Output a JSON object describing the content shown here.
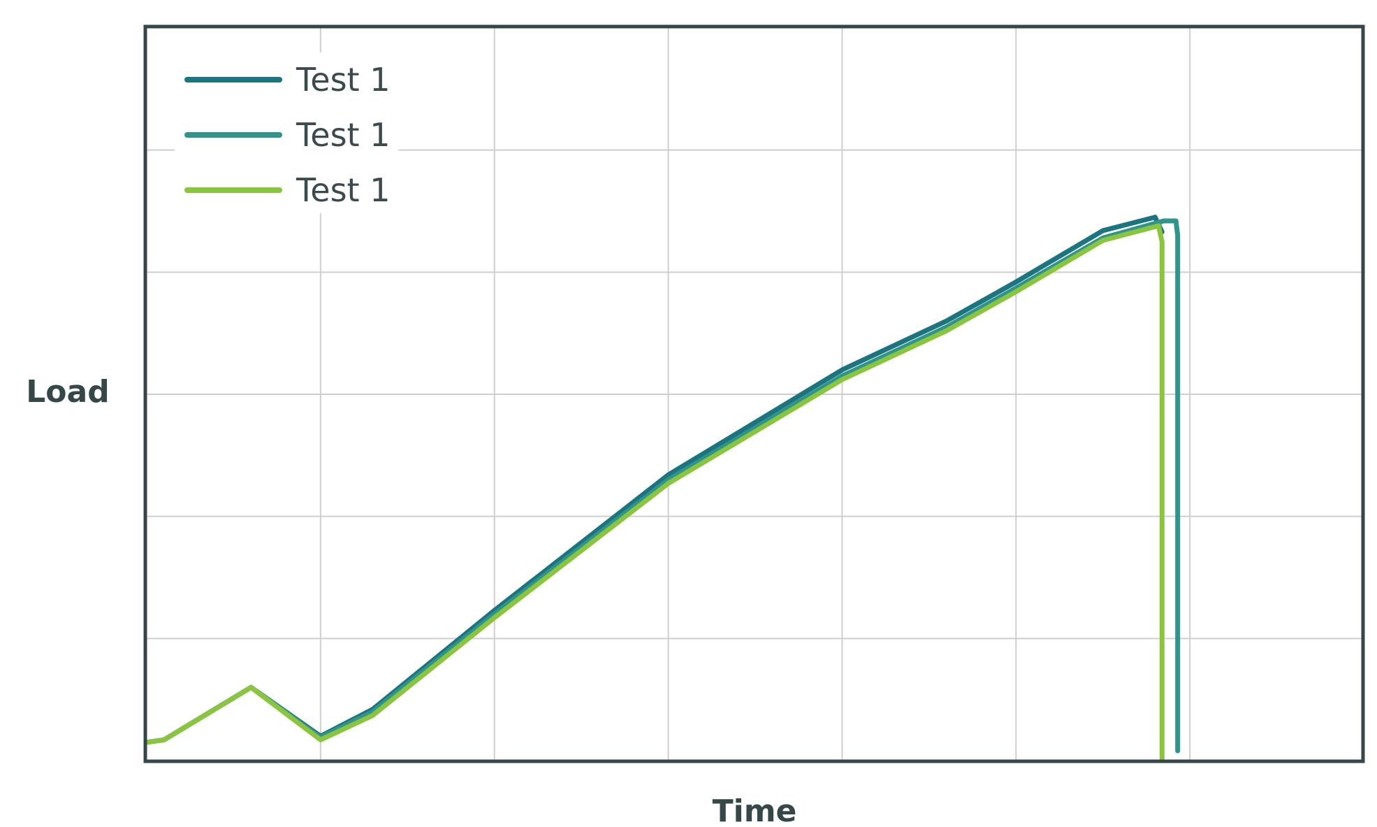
{
  "chart_data": {
    "type": "line",
    "xlabel": "Time",
    "ylabel": "Load",
    "xlim": [
      0,
      7
    ],
    "ylim": [
      0,
      6
    ],
    "grid": true,
    "legend_position": "top-left",
    "series": [
      {
        "name": "Test 1",
        "color": "#1b7480",
        "x": [
          0,
          0.1,
          0.6,
          1.0,
          1.3,
          2.0,
          3.0,
          4.0,
          4.6,
          5.0,
          5.5,
          5.8,
          5.84
        ],
        "y": [
          0.15,
          0.17,
          0.6,
          0.2,
          0.42,
          1.23,
          2.34,
          3.2,
          3.6,
          3.92,
          4.34,
          4.45,
          4.33
        ]
      },
      {
        "name": "Test 1",
        "color": "#2f958a",
        "x": [
          0,
          0.1,
          0.6,
          1.0,
          1.3,
          2.0,
          3.0,
          4.0,
          4.6,
          5.0,
          5.5,
          5.85,
          5.92,
          5.93,
          5.93
        ],
        "y": [
          0.15,
          0.17,
          0.6,
          0.19,
          0.4,
          1.2,
          2.3,
          3.15,
          3.55,
          3.87,
          4.28,
          4.42,
          4.42,
          4.3,
          0.08
        ]
      },
      {
        "name": "Test 1",
        "color": "#8bc43f",
        "x": [
          0,
          0.1,
          0.6,
          1.0,
          1.3,
          2.0,
          3.0,
          4.0,
          4.6,
          5.0,
          5.5,
          5.82,
          5.84,
          5.84
        ],
        "y": [
          0.15,
          0.17,
          0.6,
          0.17,
          0.37,
          1.17,
          2.27,
          3.12,
          3.52,
          3.84,
          4.26,
          4.38,
          4.25,
          0
        ]
      }
    ]
  }
}
